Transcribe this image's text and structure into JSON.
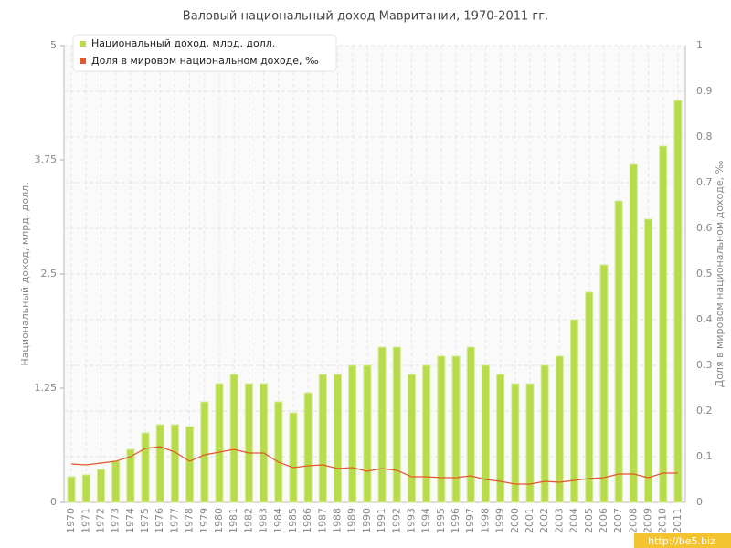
{
  "chart_data": {
    "type": "bar-line",
    "title": "Валовый национальный доход Мавритании, 1970-2011 гг.",
    "y_label": "Национальный доход, млрд. долл.",
    "y2_label": "Доля в мировом национальном доходе, ‰",
    "watermark": "http://be5.biz",
    "legend": "top-left",
    "grid": true,
    "categories": [
      "1970",
      "1971",
      "1972",
      "1973",
      "1974",
      "1975",
      "1976",
      "1977",
      "1978",
      "1979",
      "1980",
      "1981",
      "1982",
      "1983",
      "1984",
      "1985",
      "1986",
      "1987",
      "1988",
      "1989",
      "1990",
      "1991",
      "1992",
      "1993",
      "1994",
      "1995",
      "1996",
      "1997",
      "1998",
      "1999",
      "2000",
      "2001",
      "2002",
      "2003",
      "2004",
      "2005",
      "2006",
      "2007",
      "2008",
      "2009",
      "2010",
      "2011"
    ],
    "ylim": [
      0,
      5
    ],
    "yticks": [
      0,
      1.25,
      2.5,
      3.75,
      5
    ],
    "y2lim": [
      0,
      1
    ],
    "y2ticks": [
      0,
      0.1,
      0.2,
      0.3,
      0.4,
      0.5,
      0.6,
      0.7,
      0.8,
      0.9,
      1
    ],
    "series": [
      {
        "name": "Национальный доход, млрд. долл.",
        "type": "bar",
        "color": "#b8db4c",
        "values": [
          0.28,
          0.3,
          0.36,
          0.45,
          0.58,
          0.76,
          0.85,
          0.85,
          0.83,
          1.1,
          1.3,
          1.4,
          1.3,
          1.3,
          1.1,
          0.98,
          1.2,
          1.4,
          1.4,
          1.5,
          1.5,
          1.7,
          1.7,
          1.4,
          1.5,
          1.6,
          1.6,
          1.7,
          1.5,
          1.4,
          1.3,
          1.3,
          1.5,
          1.6,
          2.0,
          2.3,
          2.6,
          3.3,
          3.7,
          3.1,
          3.9,
          4.4
        ]
      },
      {
        "name": "Доля в мировом национальном доходе, ‰",
        "type": "line",
        "axis": "y2",
        "color": "#e2572b",
        "values": [
          0.084,
          0.082,
          0.086,
          0.09,
          0.1,
          0.118,
          0.122,
          0.11,
          0.09,
          0.104,
          0.11,
          0.116,
          0.108,
          0.108,
          0.088,
          0.076,
          0.08,
          0.082,
          0.074,
          0.076,
          0.068,
          0.074,
          0.07,
          0.056,
          0.056,
          0.054,
          0.054,
          0.058,
          0.05,
          0.046,
          0.04,
          0.04,
          0.046,
          0.044,
          0.048,
          0.052,
          0.054,
          0.062,
          0.062,
          0.054,
          0.064,
          0.064
        ]
      }
    ]
  }
}
